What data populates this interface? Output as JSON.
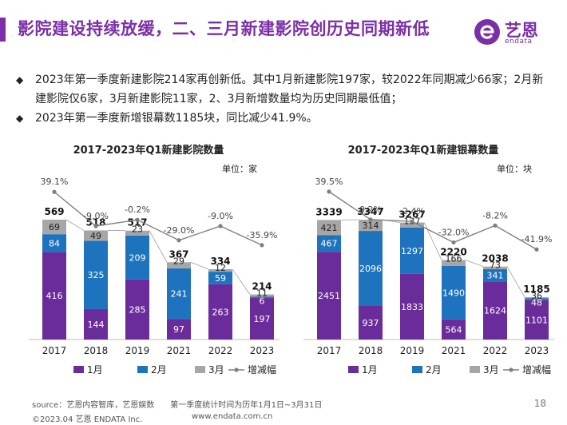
{
  "header": {
    "title": "影院建设持续放缓，二、三月新建影院创历史同期新低",
    "logo_text": "艺恩",
    "logo_sub": "endata"
  },
  "bullets": [
    {
      "mark": "◆",
      "text": "2023年第一季度新建影院214家再创新低。其中1月新建影院197家，较2022年同期减少66家；2月新建影院仅6家，3月新建影院11家，2、3月新增数量均为历史同期最低值；"
    },
    {
      "mark": "◆",
      "text": "2023年第一季度新增银幕数1185块，同比减少41.9%。"
    }
  ],
  "colors": {
    "jan": "#6a2c9a",
    "feb": "#1e73be",
    "mar": "#a6a6a6",
    "line": "#7f7f7f",
    "accent": "#7b2fa6"
  },
  "chart_data": [
    {
      "type": "bar",
      "stacked": true,
      "title": "2017-2023年Q1新建影院数量",
      "unit": "单位：家",
      "categories": [
        "2017",
        "2018",
        "2019",
        "2021",
        "2022",
        "2023"
      ],
      "series": [
        {
          "name": "1月",
          "values": [
            416,
            144,
            285,
            97,
            263,
            197
          ]
        },
        {
          "name": "2月",
          "values": [
            84,
            325,
            209,
            241,
            59,
            6
          ]
        },
        {
          "name": "3月",
          "values": [
            69,
            49,
            23,
            29,
            12,
            11
          ]
        }
      ],
      "totals": [
        569,
        518,
        517,
        367,
        334,
        214
      ],
      "growth": {
        "name": "增减幅",
        "labels": [
          "39.1%",
          "-9.0%",
          "-0.2%",
          "-29.0%",
          "-9.0%",
          "-35.9%"
        ],
        "values": [
          39.1,
          -9.0,
          -0.2,
          -29.0,
          -9.0,
          -35.9
        ]
      },
      "legend": [
        "1月",
        "2月",
        "3月",
        "增减幅"
      ],
      "legend_position": "bottom"
    },
    {
      "type": "bar",
      "stacked": true,
      "title": "2017-2023年Q1新建银幕数量",
      "unit": "单位：块",
      "categories": [
        "2017",
        "2018",
        "2019",
        "2021",
        "2022",
        "2023"
      ],
      "series": [
        {
          "name": "1月",
          "values": [
            2451,
            937,
            1833,
            564,
            1624,
            1101
          ]
        },
        {
          "name": "2月",
          "values": [
            467,
            2096,
            1297,
            1490,
            341,
            48
          ]
        },
        {
          "name": "3月",
          "values": [
            421,
            314,
            137,
            166,
            73,
            36
          ]
        }
      ],
      "totals": [
        3339,
        3347,
        3267,
        2220,
        2038,
        1185
      ],
      "growth": {
        "name": "增减幅",
        "labels": [
          "39.5%",
          "0.2%",
          "-2.4%",
          "-32.0%",
          "-8.2%",
          "-41.9%"
        ],
        "values": [
          39.5,
          0.2,
          -2.4,
          -32.0,
          -8.2,
          -41.9
        ]
      },
      "legend": [
        "1月",
        "2月",
        "3月",
        "增减幅"
      ],
      "legend_position": "bottom"
    }
  ],
  "footer": {
    "source": "source：艺恩内容智库，艺恩娱数　　第一季度统计时间为历年1月1日~3月31日",
    "copyright": "©2023.04 艺恩 ENDATA Inc.",
    "website": "www.endata.com.cn",
    "page": "18"
  }
}
